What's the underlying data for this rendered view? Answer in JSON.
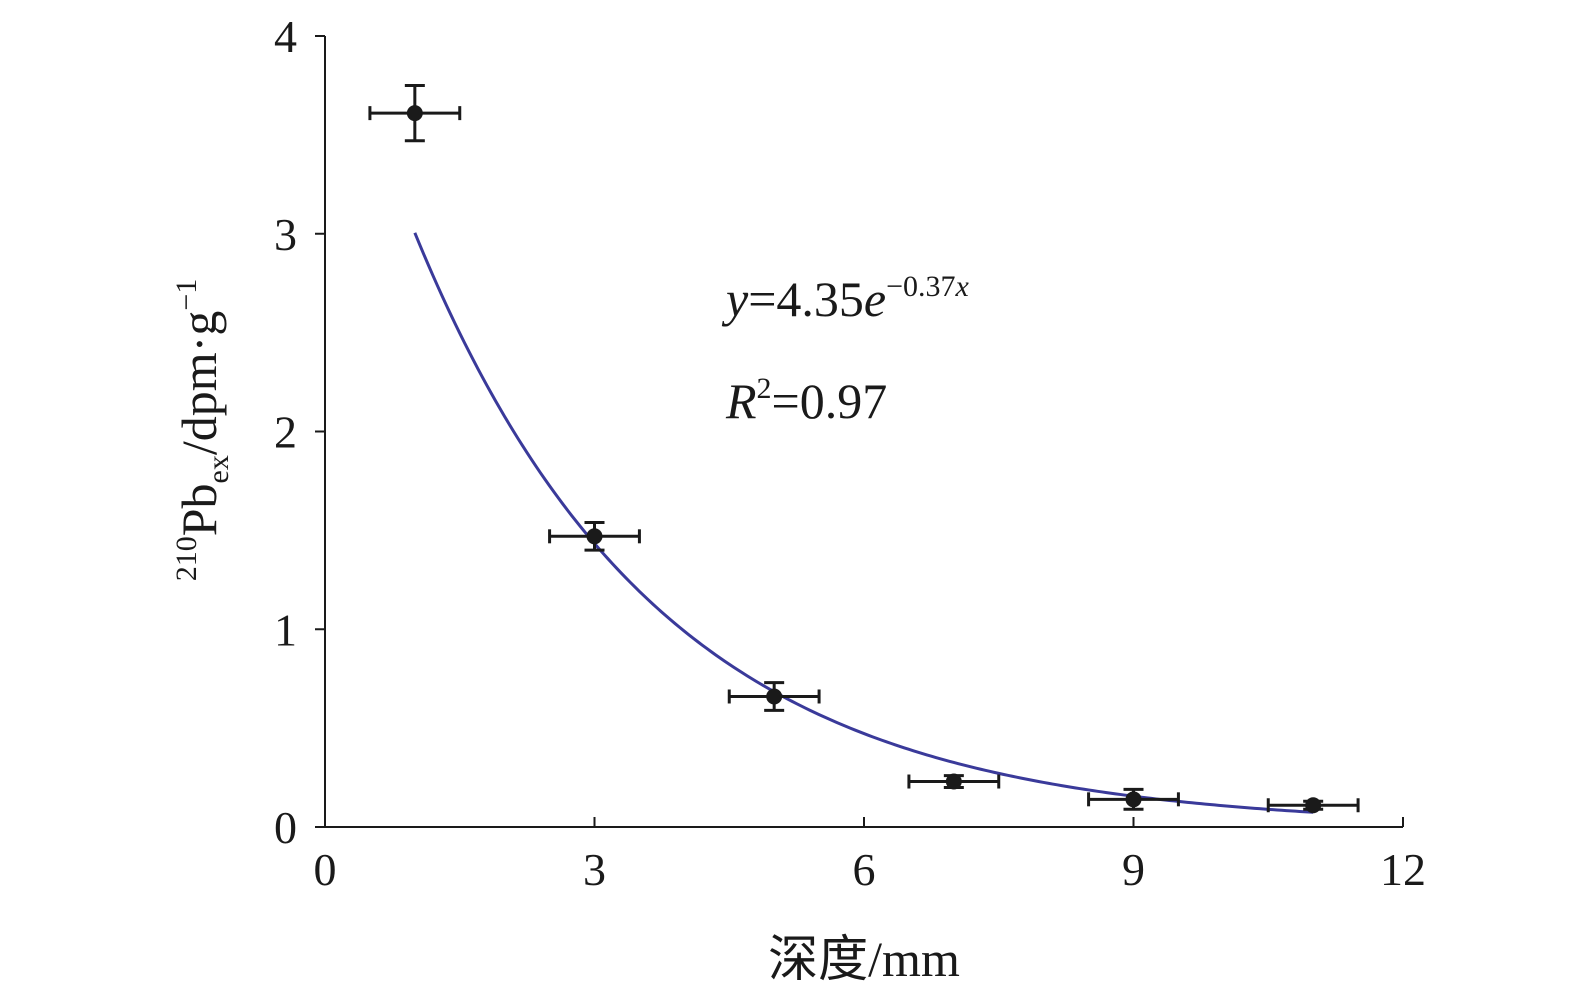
{
  "chart_data": {
    "type": "scatter",
    "xlabel": "深度/mm",
    "ylabel": {
      "superscript": "210",
      "main": "Pb",
      "subscript": "ex",
      "unit": "/dpm·g",
      "unit_superscript": "−1"
    },
    "xlim": [
      0,
      12
    ],
    "ylim": [
      0,
      4
    ],
    "xticks": [
      "0",
      "3",
      "6",
      "9",
      "12"
    ],
    "yticks": [
      "0",
      "1",
      "2",
      "3",
      "4"
    ],
    "grid": false,
    "points": [
      {
        "x": 1,
        "y": 3.61,
        "xerr": 0.5,
        "yerr": 0.14
      },
      {
        "x": 3,
        "y": 1.47,
        "xerr": 0.5,
        "yerr": 0.07
      },
      {
        "x": 5,
        "y": 0.66,
        "xerr": 0.5,
        "yerr": 0.07
      },
      {
        "x": 7,
        "y": 0.23,
        "xerr": 0.5,
        "yerr": 0.03
      },
      {
        "x": 9,
        "y": 0.14,
        "xerr": 0.5,
        "yerr": 0.05
      },
      {
        "x": 11,
        "y": 0.11,
        "xerr": 0.5,
        "yerr": 0.02
      }
    ],
    "fit": {
      "type": "exponential",
      "a": 4.35,
      "b": -0.37,
      "x_range": [
        1,
        11
      ],
      "color": "#3a3a9a",
      "equation": {
        "y": "y",
        "rhs": "=4.35",
        "e": "e",
        "exponent": "−0.37",
        "exponent_var": "x"
      },
      "r2": {
        "R": "R",
        "sup": "2",
        "rhs": "=0.97"
      }
    },
    "colors": {
      "axis": "#1a1a1a",
      "marker": "#1a1a1a",
      "errorbar": "#1a1a1a"
    }
  }
}
